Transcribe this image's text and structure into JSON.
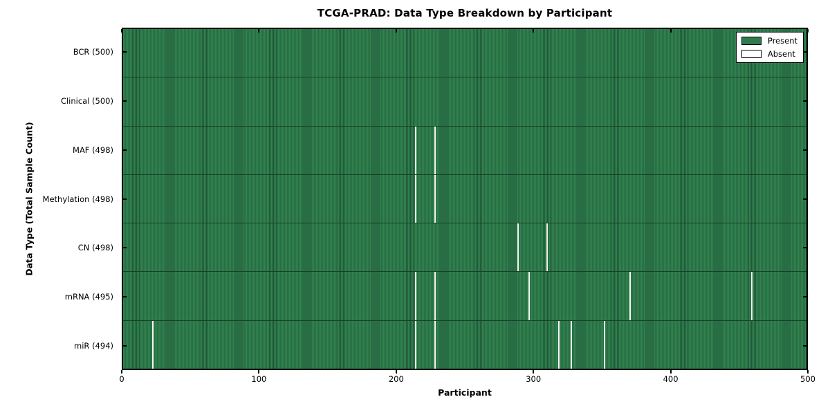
{
  "chart_data": {
    "type": "heatmap",
    "title": "TCGA-PRAD: Data Type Breakdown by Participant",
    "xlabel": "Participant",
    "ylabel": "Data Type (Total Sample Count)",
    "xlim": [
      0,
      500
    ],
    "x_ticks": [
      0,
      100,
      200,
      300,
      400,
      500
    ],
    "n_participants": 500,
    "grid": false,
    "colors": {
      "present": "#2e7b4f",
      "present_edge": "#1f5837",
      "absent": "#ffffff",
      "row_separator": "#16402a"
    },
    "legend": {
      "position": "upper right",
      "entries": [
        {
          "label": "Present",
          "color": "#2e7b4f"
        },
        {
          "label": "Absent",
          "color": "#ffffff"
        }
      ]
    },
    "rows": [
      {
        "label": "BCR (500)",
        "data_type": "BCR",
        "total": 500,
        "absent_participants": []
      },
      {
        "label": "Clinical (500)",
        "data_type": "Clinical",
        "total": 500,
        "absent_participants": []
      },
      {
        "label": "MAF (498)",
        "data_type": "MAF",
        "total": 498,
        "absent_participants": [
          214,
          228
        ]
      },
      {
        "label": "Methylation (498)",
        "data_type": "Methylation",
        "total": 498,
        "absent_participants": [
          214,
          228
        ]
      },
      {
        "label": "CN (498)",
        "data_type": "CN",
        "total": 498,
        "absent_participants": [
          289,
          310
        ]
      },
      {
        "label": "mRNA (495)",
        "data_type": "mRNA",
        "total": 495,
        "absent_participants": [
          214,
          228,
          297,
          371,
          460
        ]
      },
      {
        "label": "miR (494)",
        "data_type": "miR",
        "total": 494,
        "absent_participants": [
          22,
          214,
          228,
          319,
          328,
          352
        ]
      }
    ]
  }
}
